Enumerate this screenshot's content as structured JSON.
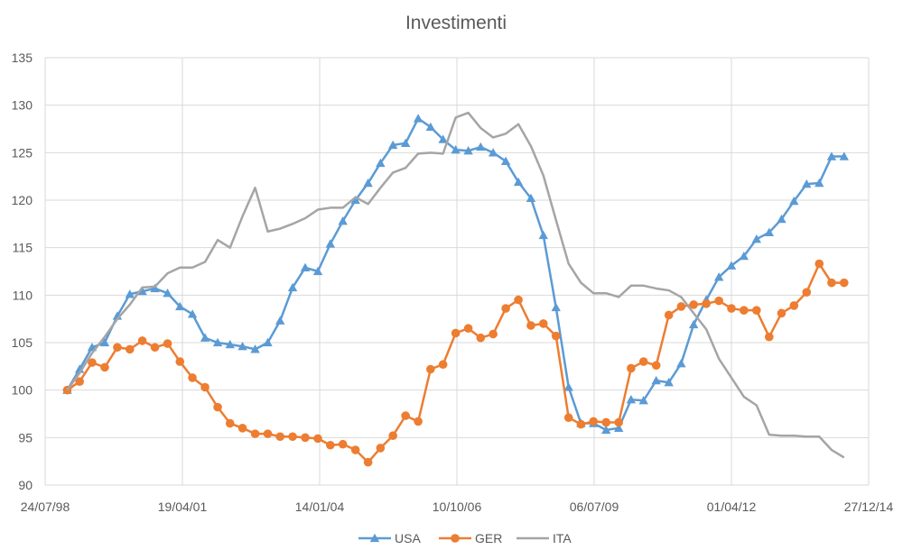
{
  "chart_data": {
    "type": "line",
    "title": "Investimenti",
    "xlabel": "",
    "ylabel": "",
    "ylim": [
      90,
      135
    ],
    "yticks": [
      90,
      95,
      100,
      105,
      110,
      115,
      120,
      125,
      130,
      135
    ],
    "xlim": [
      "1998-07-24",
      "2014-12-27"
    ],
    "xticks": [
      "24/07/98",
      "19/04/01",
      "14/01/04",
      "10/10/06",
      "06/07/09",
      "01/04/12",
      "27/12/14"
    ],
    "grid": true,
    "legend_position": "bottom",
    "x": [
      "1999-01-01",
      "1999-04-01",
      "1999-07-01",
      "1999-10-01",
      "2000-01-01",
      "2000-04-01",
      "2000-07-01",
      "2000-10-01",
      "2001-01-01",
      "2001-04-01",
      "2001-07-01",
      "2001-10-01",
      "2002-01-01",
      "2002-04-01",
      "2002-07-01",
      "2002-10-01",
      "2003-01-01",
      "2003-04-01",
      "2003-07-01",
      "2003-10-01",
      "2004-01-01",
      "2004-04-01",
      "2004-07-01",
      "2004-10-01",
      "2005-01-01",
      "2005-04-01",
      "2005-07-01",
      "2005-10-01",
      "2006-01-01",
      "2006-04-01",
      "2006-07-01",
      "2006-10-01",
      "2007-01-01",
      "2007-04-01",
      "2007-07-01",
      "2007-10-01",
      "2008-01-01",
      "2008-04-01",
      "2008-07-01",
      "2008-10-01",
      "2009-01-01",
      "2009-04-01",
      "2009-07-01",
      "2009-10-01",
      "2010-01-01",
      "2010-04-01",
      "2010-07-01",
      "2010-10-01",
      "2011-01-01",
      "2011-04-01",
      "2011-07-01",
      "2011-10-01",
      "2012-01-01",
      "2012-04-01",
      "2012-07-01",
      "2012-10-01",
      "2013-01-01",
      "2013-04-01",
      "2013-07-01",
      "2013-10-01",
      "2014-01-01",
      "2014-04-01",
      "2014-07-01"
    ],
    "series": [
      {
        "name": "USA",
        "color": "#5B9BD5",
        "marker": "triangle",
        "values": [
          100,
          102.2,
          104.5,
          105,
          107.8,
          110.1,
          110.4,
          110.7,
          110.2,
          108.8,
          108,
          105.5,
          105,
          104.8,
          104.6,
          104.3,
          105,
          107.3,
          110.8,
          112.9,
          112.5,
          115.4,
          117.8,
          120,
          121.8,
          123.9,
          125.8,
          126,
          128.6,
          127.7,
          126.4,
          125.3,
          125.2,
          125.6,
          125,
          124.1,
          121.9,
          120.2,
          116.3,
          108.7,
          100.3,
          96.5,
          96.5,
          95.8,
          96,
          99,
          98.9,
          101,
          100.8,
          102.8,
          106.9,
          109.5,
          111.9,
          113.1,
          114.1,
          115.9,
          116.6,
          118,
          119.9,
          121.7,
          121.8,
          124.6,
          124.6
        ]
      },
      {
        "name": "GER",
        "color": "#ED7D31",
        "marker": "circle",
        "values": [
          100,
          100.9,
          102.9,
          102.4,
          104.5,
          104.3,
          105.2,
          104.5,
          104.9,
          103,
          101.3,
          100.3,
          98.2,
          96.5,
          96,
          95.4,
          95.4,
          95.1,
          95.1,
          95,
          94.9,
          94.2,
          94.3,
          93.7,
          92.4,
          93.9,
          95.2,
          97.3,
          96.7,
          102.2,
          102.7,
          106,
          106.5,
          105.5,
          105.9,
          108.6,
          109.5,
          106.8,
          107,
          105.7,
          97.1,
          96.4,
          96.7,
          96.6,
          96.6,
          102.3,
          103,
          102.6,
          107.9,
          108.8,
          109,
          109.1,
          109.4,
          108.6,
          108.4,
          108.4,
          105.6,
          108.1,
          108.9,
          110.3,
          113.3,
          111.3,
          111.3
        ]
      },
      {
        "name": "ITA",
        "color": "#A5A5A5",
        "marker": "none",
        "values": [
          100,
          101.8,
          103.9,
          105.6,
          107.5,
          109,
          110.8,
          110.9,
          112.3,
          112.9,
          112.9,
          113.5,
          115.8,
          115,
          118.3,
          121.3,
          116.7,
          117,
          117.5,
          118.1,
          119,
          119.2,
          119.2,
          120.3,
          119.6,
          121.3,
          122.9,
          123.4,
          124.9,
          125,
          124.9,
          128.7,
          129.2,
          127.6,
          126.6,
          127,
          128,
          125.7,
          122.6,
          117.9,
          113.3,
          111.3,
          110.2,
          110.2,
          109.8,
          111,
          111,
          110.7,
          110.5,
          109.8,
          108.1,
          106.4,
          103.3,
          101.3,
          99.3,
          98.4,
          95.3,
          95.2,
          95.2,
          95.1,
          95.1,
          93.7,
          92.9
        ]
      }
    ]
  }
}
